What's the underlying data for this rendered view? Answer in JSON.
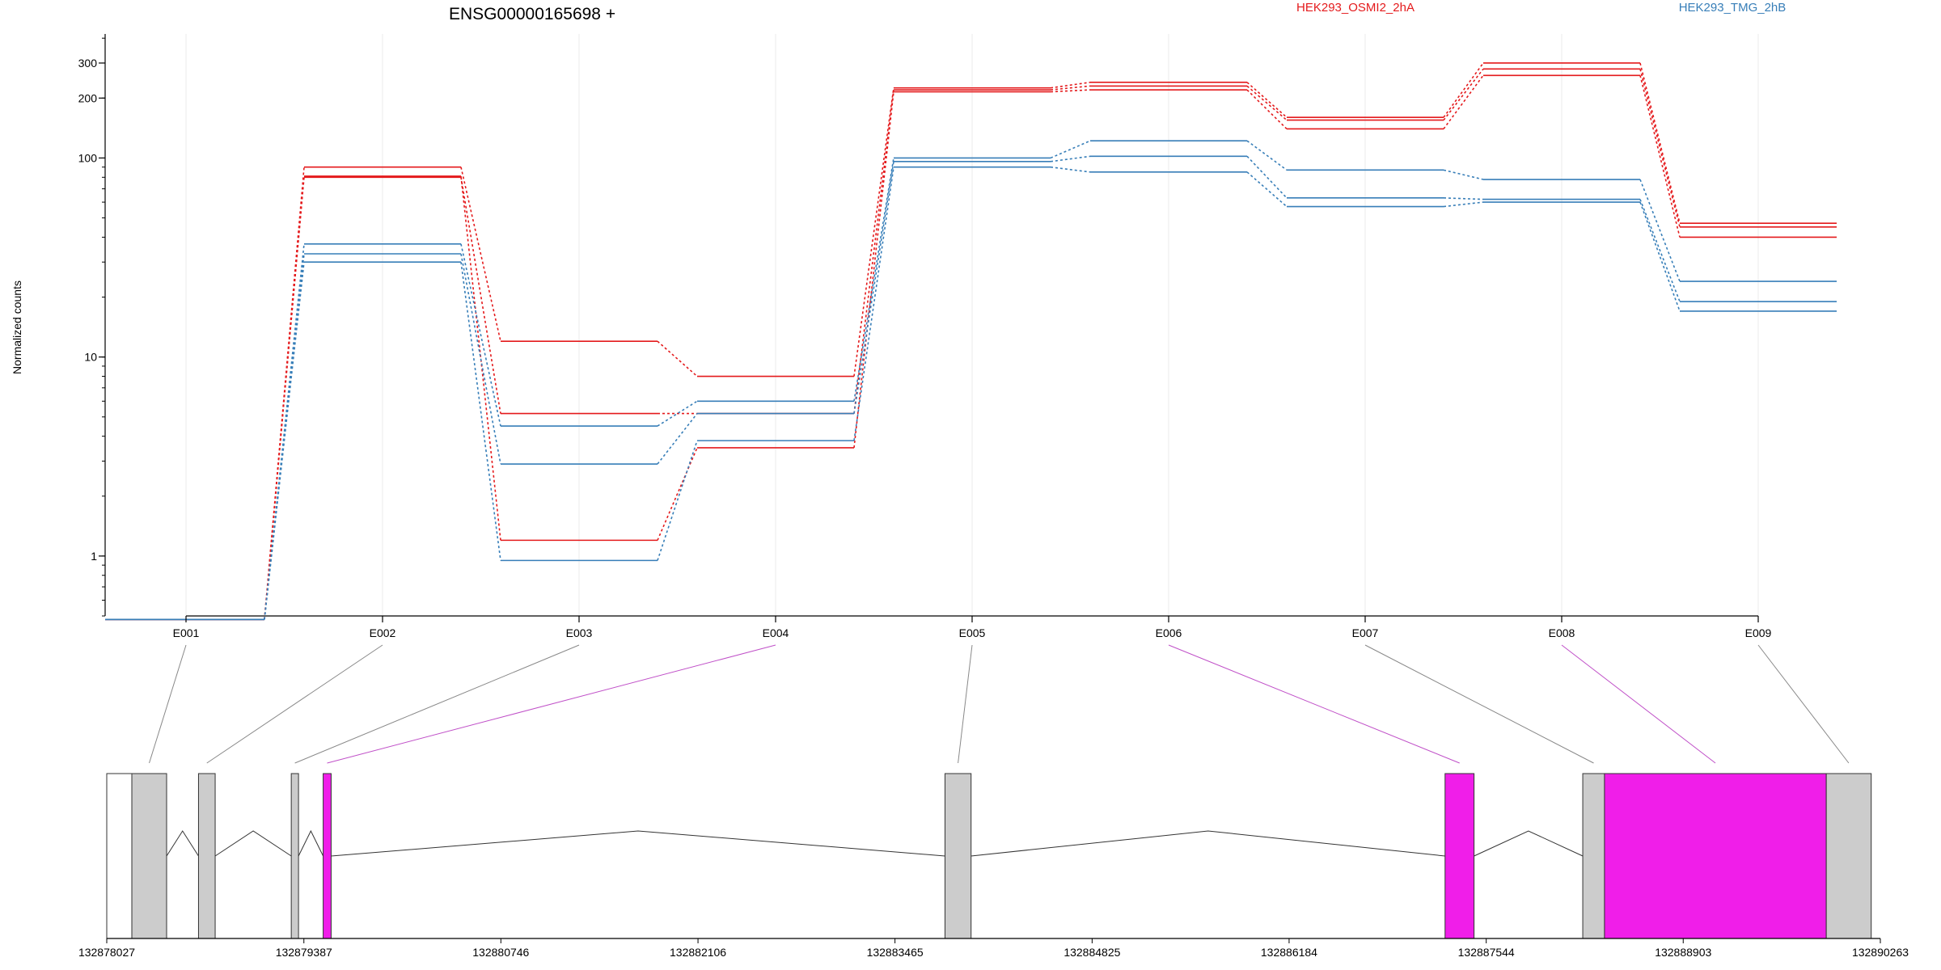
{
  "chart_data": {
    "type": "line",
    "title": "ENSG00000165698 +",
    "ylabel": "Normalized counts",
    "yscale": "log",
    "ylim": [
      0.5,
      420
    ],
    "yticks": [
      1,
      10,
      100,
      200,
      300
    ],
    "categories": [
      "E001",
      "E002",
      "E003",
      "E004",
      "E005",
      "E006",
      "E007",
      "E008",
      "E009"
    ],
    "legend": [
      {
        "label": "HEK293_OSMI2_2hA",
        "color": "#e41a1c"
      },
      {
        "label": "HEK293_TMG_2hB",
        "color": "#377eb8"
      }
    ],
    "series": [
      {
        "group": "HEK293_OSMI2_2hA",
        "color": "#e41a1c",
        "values": [
          0.48,
          90,
          12,
          8,
          225,
          240,
          160,
          300,
          47
        ]
      },
      {
        "group": "HEK293_OSMI2_2hA",
        "color": "#e41a1c",
        "values": [
          0.48,
          80,
          5.2,
          5.2,
          220,
          230,
          155,
          280,
          45
        ]
      },
      {
        "group": "HEK293_OSMI2_2hA",
        "color": "#e41a1c",
        "values": [
          0.48,
          81,
          1.2,
          3.5,
          215,
          220,
          140,
          260,
          40
        ]
      },
      {
        "group": "HEK293_TMG_2hB",
        "color": "#377eb8",
        "values": [
          0.48,
          37,
          4.5,
          6,
          100,
          122,
          87,
          78,
          24
        ]
      },
      {
        "group": "HEK293_TMG_2hB",
        "color": "#377eb8",
        "values": [
          0.48,
          33,
          2.9,
          5.2,
          96,
          102,
          63,
          62,
          19
        ]
      },
      {
        "group": "HEK293_TMG_2hB",
        "color": "#377eb8",
        "values": [
          0.48,
          30,
          0.95,
          3.8,
          90,
          85,
          57,
          60,
          17
        ]
      }
    ],
    "gene_model": {
      "coordinate_labels": [
        "132878027",
        "132879387",
        "132880746",
        "132882106",
        "132883465",
        "132884825",
        "132886184",
        "132887544",
        "132888903",
        "132890263"
      ],
      "exons": [
        {
          "start": 132878027,
          "end": 132878200,
          "fill": "#ffffff",
          "exon": ""
        },
        {
          "start": 132878200,
          "end": 132878440,
          "fill": "#cccccc",
          "exon": "E001"
        },
        {
          "start": 132878660,
          "end": 132878775,
          "fill": "#cccccc",
          "exon": "E002"
        },
        {
          "start": 132879300,
          "end": 132879350,
          "fill": "#cccccc",
          "exon": "E003"
        },
        {
          "start": 132879520,
          "end": 132879575,
          "fill": "#f01ee9",
          "exon": "E004"
        },
        {
          "start": 132883810,
          "end": 132883990,
          "fill": "#cccccc",
          "exon": "E005"
        },
        {
          "start": 132887260,
          "end": 132887460,
          "fill": "#f01ee9",
          "exon": "E006"
        },
        {
          "start": 132888210,
          "end": 132888360,
          "fill": "#cccccc",
          "exon": "E007"
        },
        {
          "start": 132888360,
          "end": 132889890,
          "fill": "#f01ee9",
          "exon": "E008"
        },
        {
          "start": 132889890,
          "end": 132890200,
          "fill": "#cccccc",
          "exon": "E009"
        }
      ],
      "highlight_color": "#c050c8",
      "connector_color": "#888888"
    }
  }
}
